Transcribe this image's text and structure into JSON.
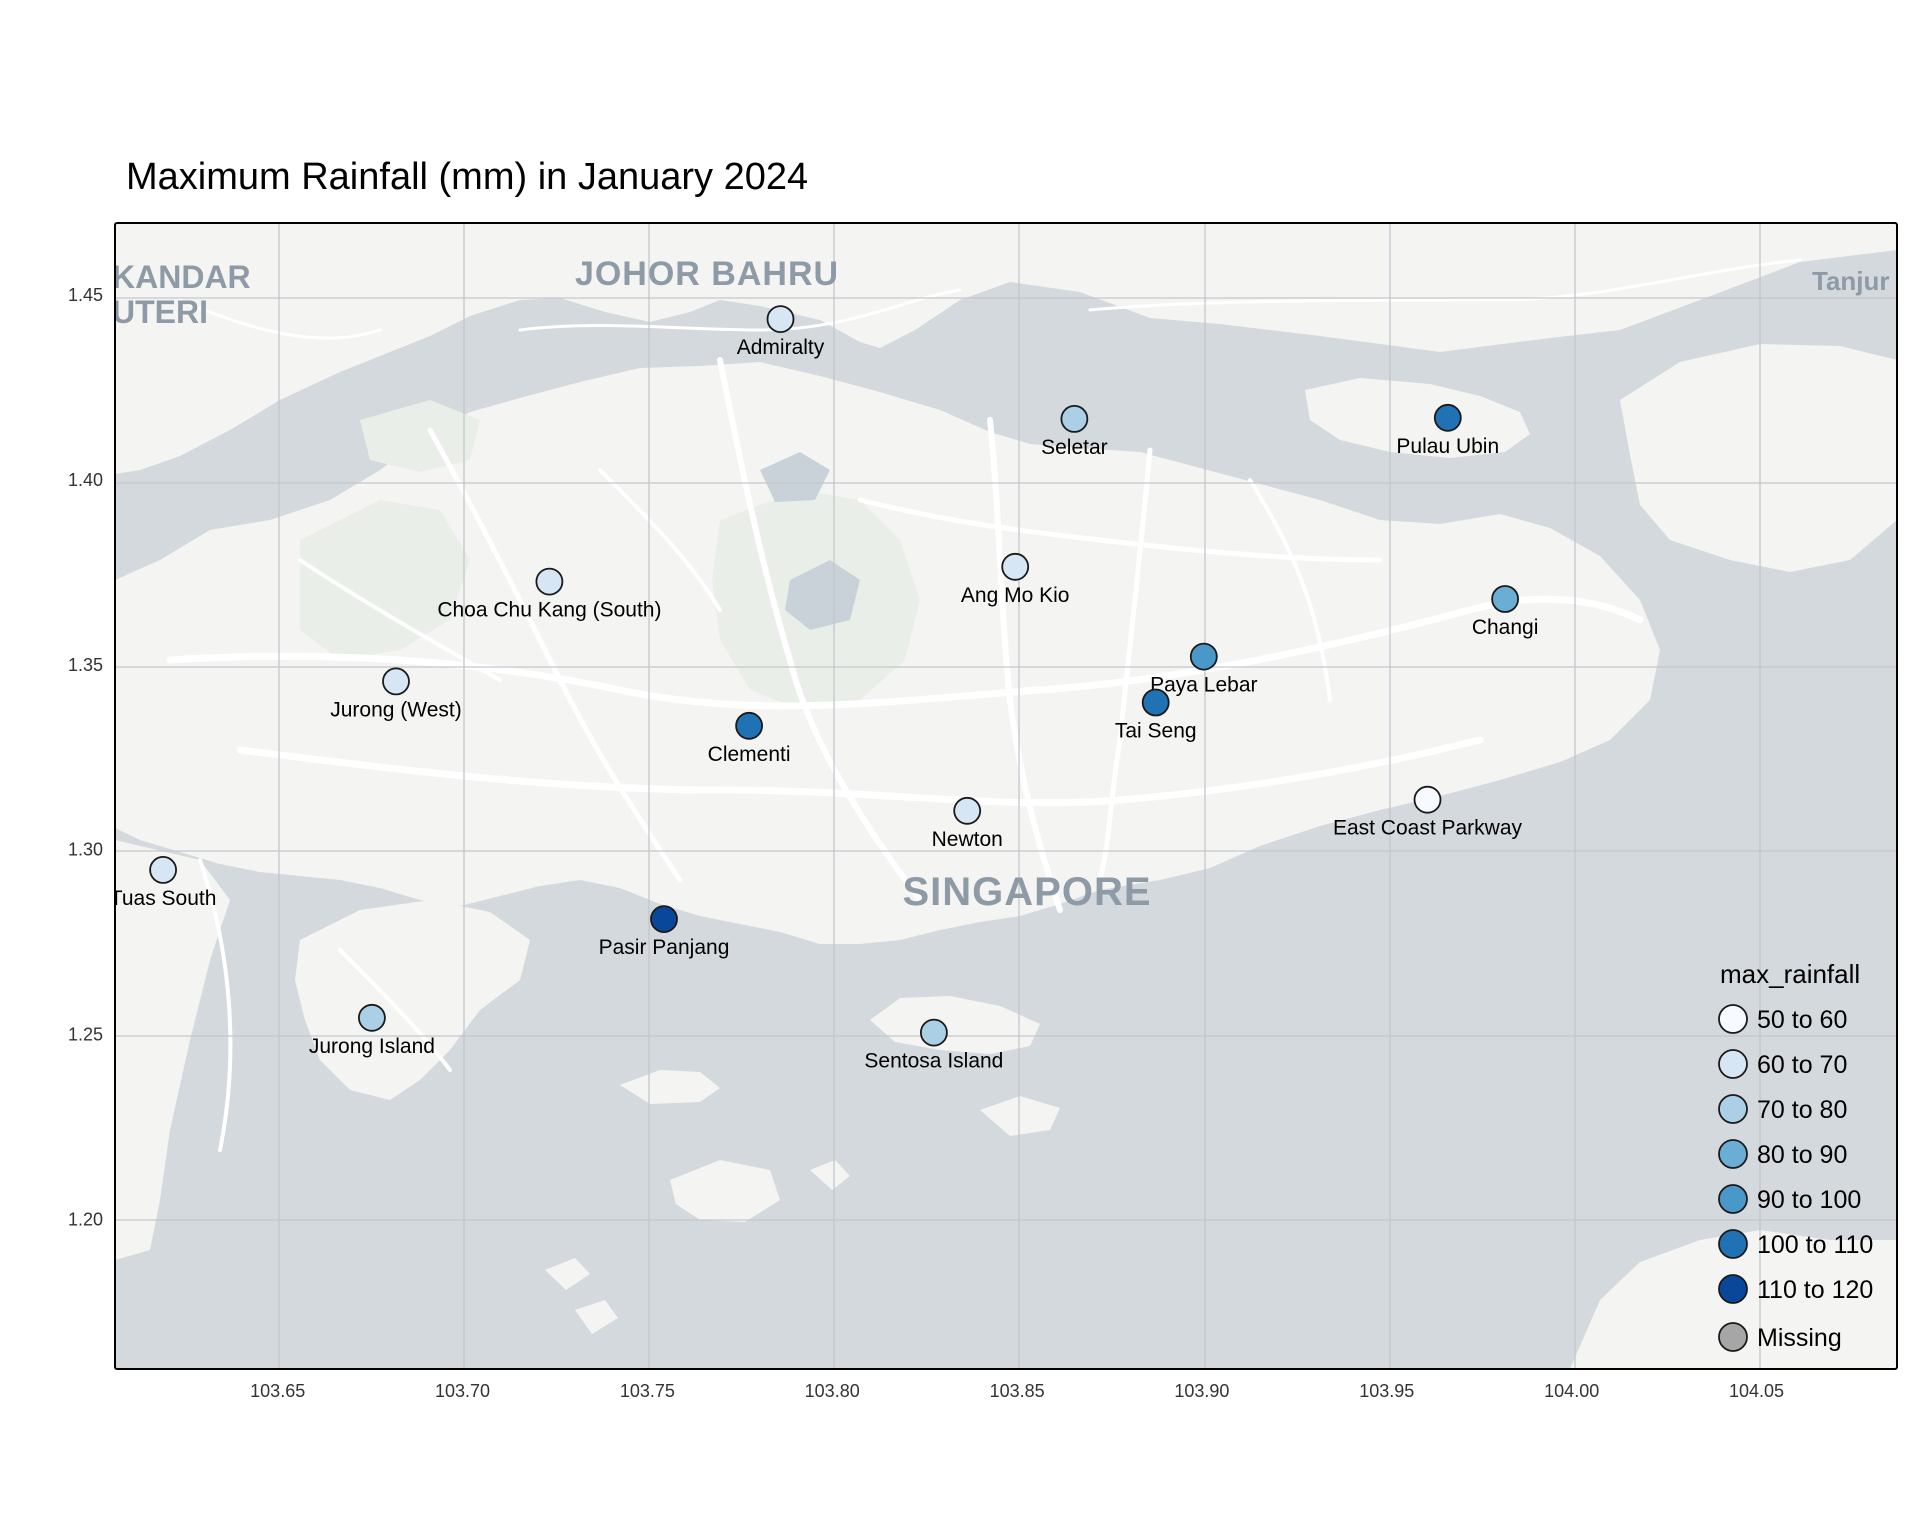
{
  "title": "Maximum Rainfall (mm) in January 2024",
  "legend": {
    "title": "max_rainfall",
    "items": [
      {
        "label": "50 to 60",
        "color": "#f7fbff"
      },
      {
        "label": "60 to 70",
        "color": "#d6e6f4"
      },
      {
        "label": "70 to 80",
        "color": "#abd0e6"
      },
      {
        "label": "80 to 90",
        "color": "#6aaed6"
      },
      {
        "label": "90 to 100",
        "color": "#4a98c9"
      },
      {
        "label": "100 to 110",
        "color": "#2171b5"
      },
      {
        "label": "110 to 120",
        "color": "#08479a"
      },
      {
        "label": "Missing",
        "color": "#a6a6a6"
      }
    ]
  },
  "axes": {
    "x_ticks": [
      "103.65",
      "103.70",
      "103.75",
      "103.80",
      "103.85",
      "103.90",
      "103.95",
      "104.00",
      "104.05"
    ],
    "y_ticks": [
      "1.20",
      "1.25",
      "1.30",
      "1.35",
      "1.40",
      "1.45"
    ],
    "x_range": [
      103.606,
      104.088
    ],
    "y_range": [
      1.1595,
      1.4695
    ]
  },
  "place_labels": {
    "johor_bahru": "JOHOR BAHRU",
    "singapore": "SINGAPORE",
    "iskandar_line1": "KANDAR",
    "iskandar_line2": "UTERI",
    "tanjung": "Tanjur"
  },
  "colors": {
    "water": "#d4d9dd",
    "land": "#f4f5f3",
    "park": "#e9efe8",
    "road": "#ffffff",
    "grid": "#c3c7cb",
    "place_label": "#8e9aa6"
  },
  "stations": [
    {
      "name": "Admiralty",
      "lon": 103.786,
      "lat": 1.4435,
      "bin": "60 to 70"
    },
    {
      "name": "Seletar",
      "lon": 103.8655,
      "lat": 1.4165,
      "bin": "70 to 80"
    },
    {
      "name": "Pulau Ubin",
      "lon": 103.9665,
      "lat": 1.4168,
      "bin": "100 to 110"
    },
    {
      "name": "Choa Chu Kang (South)",
      "lon": 103.7235,
      "lat": 1.3725,
      "bin": "60 to 70"
    },
    {
      "name": "Ang Mo Kio",
      "lon": 103.8495,
      "lat": 1.3765,
      "bin": "60 to 70"
    },
    {
      "name": "Changi",
      "lon": 103.982,
      "lat": 1.3678,
      "bin": "80 to 90"
    },
    {
      "name": "Jurong (West)",
      "lon": 103.682,
      "lat": 1.3455,
      "bin": "60 to 70"
    },
    {
      "name": "Paya Lebar",
      "lon": 103.9005,
      "lat": 1.3522,
      "bin": "90 to 100"
    },
    {
      "name": "Tai Seng",
      "lon": 103.8875,
      "lat": 1.3398,
      "bin": "100 to 110"
    },
    {
      "name": "Clementi",
      "lon": 103.7775,
      "lat": 1.3335,
      "bin": "100 to 110"
    },
    {
      "name": "Newton",
      "lon": 103.8365,
      "lat": 1.3105,
      "bin": "60 to 70"
    },
    {
      "name": "East Coast Parkway",
      "lon": 103.961,
      "lat": 1.3135,
      "bin": "50 to 60"
    },
    {
      "name": "Tuas South",
      "lon": 103.619,
      "lat": 1.2945,
      "bin": "60 to 70"
    },
    {
      "name": "Pasir Panjang",
      "lon": 103.7545,
      "lat": 1.2812,
      "bin": "110 to 120"
    },
    {
      "name": "Jurong Island",
      "lon": 103.6755,
      "lat": 1.2545,
      "bin": "70 to 80"
    },
    {
      "name": "Sentosa Island",
      "lon": 103.8275,
      "lat": 1.2505,
      "bin": "70 to 80"
    }
  ]
}
